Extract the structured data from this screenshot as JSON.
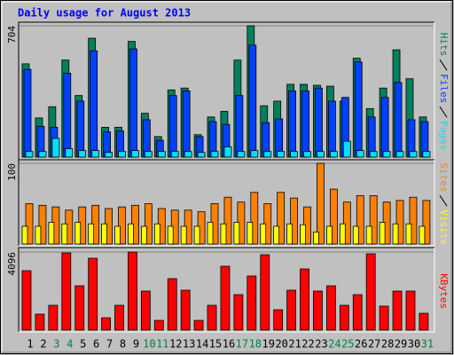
{
  "chart_data": [
    {
      "type": "bar",
      "title": "Daily usage for August 2013",
      "categories": [
        "1",
        "2",
        "3",
        "4",
        "5",
        "6",
        "7",
        "8",
        "9",
        "10",
        "11",
        "12",
        "13",
        "14",
        "15",
        "16",
        "17",
        "18",
        "19",
        "20",
        "21",
        "22",
        "23",
        "24",
        "25",
        "26",
        "27",
        "28",
        "29",
        "30",
        "31"
      ],
      "weekend_color": "#008040",
      "weekends": [
        "3",
        "4",
        "10",
        "11",
        "17",
        "18",
        "24",
        "25",
        "31"
      ],
      "ylim": [
        0,
        704
      ],
      "yticks": [
        704
      ],
      "series": [
        {
          "name": "Hits",
          "color": "#00805c",
          "values": [
            500,
            210,
            270,
            520,
            330,
            637,
            160,
            160,
            620,
            235,
            110,
            360,
            370,
            120,
            215,
            245,
            520,
            704,
            275,
            300,
            390,
            390,
            385,
            380,
            300,
            530,
            260,
            370,
            575,
            420,
            215
          ]
        },
        {
          "name": "Files",
          "color": "#0040ff",
          "values": [
            470,
            165,
            160,
            450,
            300,
            570,
            135,
            140,
            580,
            200,
            90,
            330,
            355,
            110,
            190,
            175,
            330,
            600,
            185,
            205,
            355,
            355,
            370,
            300,
            320,
            510,
            215,
            320,
            400,
            200,
            190
          ]
        },
        {
          "name": "Pages",
          "color": "#00e0ff",
          "values": [
            30,
            30,
            100,
            45,
            35,
            35,
            25,
            30,
            35,
            30,
            30,
            30,
            30,
            25,
            30,
            55,
            30,
            35,
            30,
            30,
            30,
            30,
            30,
            30,
            85,
            35,
            30,
            30,
            30,
            30,
            30
          ]
        }
      ]
    },
    {
      "type": "bar",
      "ylim": [
        0,
        100
      ],
      "yticks": [
        100
      ],
      "series": [
        {
          "name": "Sites",
          "color": "#ff8000",
          "values": [
            50,
            48,
            46,
            42,
            46,
            48,
            44,
            46,
            48,
            50,
            44,
            42,
            42,
            40,
            50,
            58,
            52,
            64,
            50,
            64,
            57,
            46,
            100,
            68,
            52,
            60,
            60,
            52,
            54,
            58,
            54
          ]
        },
        {
          "name": "Visits",
          "color": "#ffff00",
          "values": [
            22,
            22,
            27,
            25,
            27,
            25,
            25,
            22,
            25,
            22,
            25,
            22,
            22,
            22,
            27,
            25,
            27,
            27,
            25,
            22,
            25,
            24,
            15,
            22,
            25,
            22,
            22,
            27,
            25,
            25,
            22
          ]
        }
      ]
    },
    {
      "type": "bar",
      "ylim": [
        0,
        4096
      ],
      "yticks": [
        4096
      ],
      "series": [
        {
          "name": "KBytes",
          "color": "#ff0000",
          "values": [
            3118,
            838,
            1303,
            4050,
            2327,
            3770,
            650,
            1303,
            4096,
            2048,
            512,
            2700,
            2095,
            512,
            1303,
            3350,
            1862,
            2839,
            3956,
            1070,
            2095,
            3211,
            2048,
            2327,
            1303,
            1862,
            4003,
            1257,
            2048,
            2048,
            885
          ]
        }
      ]
    }
  ]
}
